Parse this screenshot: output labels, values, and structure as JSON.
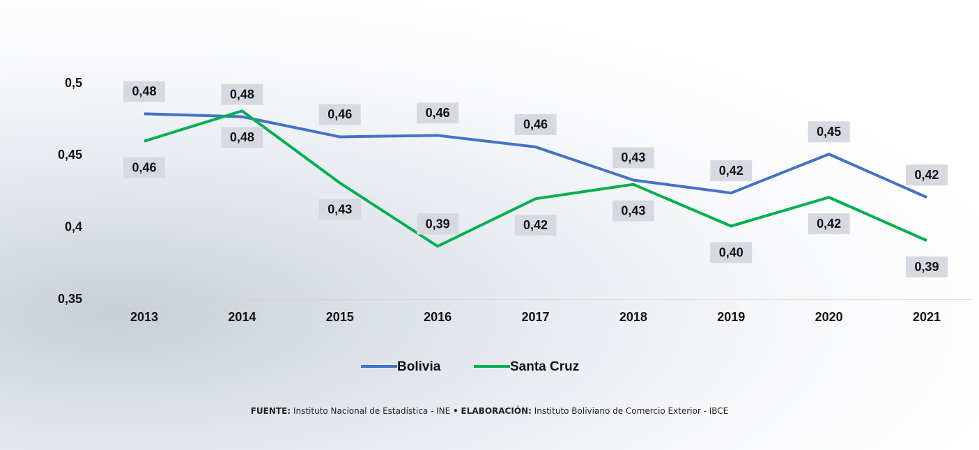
{
  "chart_data": {
    "type": "line",
    "x": [
      "2013",
      "2014",
      "2015",
      "2016",
      "2017",
      "2018",
      "2019",
      "2020",
      "2021"
    ],
    "series": [
      {
        "name": "Bolivia",
        "color": "#4472c4",
        "values": [
          0.479,
          0.477,
          0.463,
          0.464,
          0.456,
          0.433,
          0.424,
          0.451,
          0.421
        ],
        "value_labels": [
          "0,48",
          "0,48",
          "0,46",
          "0,46",
          "0,46",
          "0,43",
          "0,42",
          "0,45",
          "0,42"
        ]
      },
      {
        "name": "Santa Cruz",
        "color": "#00b050",
        "values": [
          0.46,
          0.481,
          0.431,
          0.387,
          0.42,
          0.43,
          0.401,
          0.421,
          0.391
        ],
        "value_labels": [
          "0,46",
          "0,48",
          "0,43",
          "0,39",
          "0,42",
          "0,43",
          "0,40",
          "0,42",
          "0,39"
        ]
      }
    ],
    "ylim": [
      0.35,
      0.5
    ],
    "yticks": [
      {
        "value": 0.35,
        "label": "0,35"
      },
      {
        "value": 0.4,
        "label": "0,4"
      },
      {
        "value": 0.45,
        "label": "0,45"
      },
      {
        "value": 0.5,
        "label": "0,5"
      }
    ],
    "legend": "bottom",
    "source": {
      "source_label": "FUENTE:",
      "source_text": "Instituto Nacional de Estadística - INE",
      "separator": "•",
      "credit_label": "ELABORACIÓN:",
      "credit_text": "Instituto Boliviano de Comercio Exterior - IBCE"
    }
  }
}
